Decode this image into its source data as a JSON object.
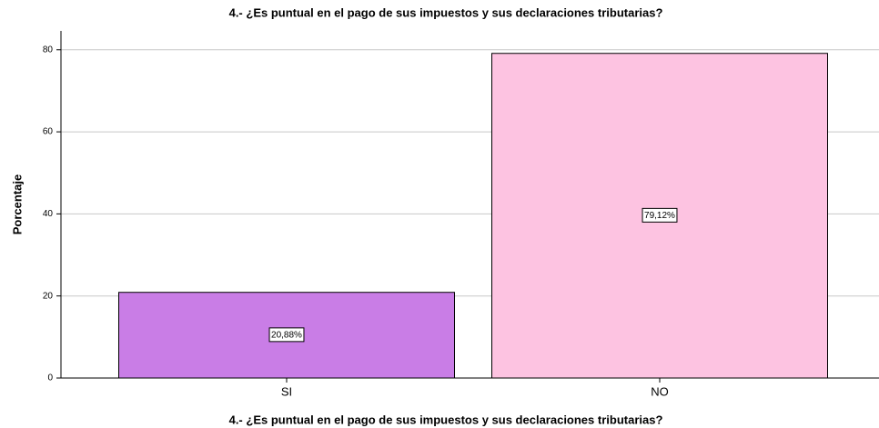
{
  "chart_data": {
    "type": "bar",
    "title": "4.- ¿Es puntual en el pago de sus impuestos y sus declaraciones tributarias?",
    "x_label": "4.- ¿Es puntual en el pago de sus impuestos y sus declaraciones tributarias?",
    "y_label": "Porcentaje",
    "categories": [
      "SI",
      "NO"
    ],
    "values": [
      20.88,
      79.12
    ],
    "value_labels": [
      "20,88%",
      "79,12%"
    ],
    "colors": [
      "#c97de6",
      "#fdc3e1"
    ],
    "ylim": [
      0,
      84.6
    ],
    "yticks": [
      0,
      20,
      40,
      60,
      80
    ],
    "grid": true
  }
}
